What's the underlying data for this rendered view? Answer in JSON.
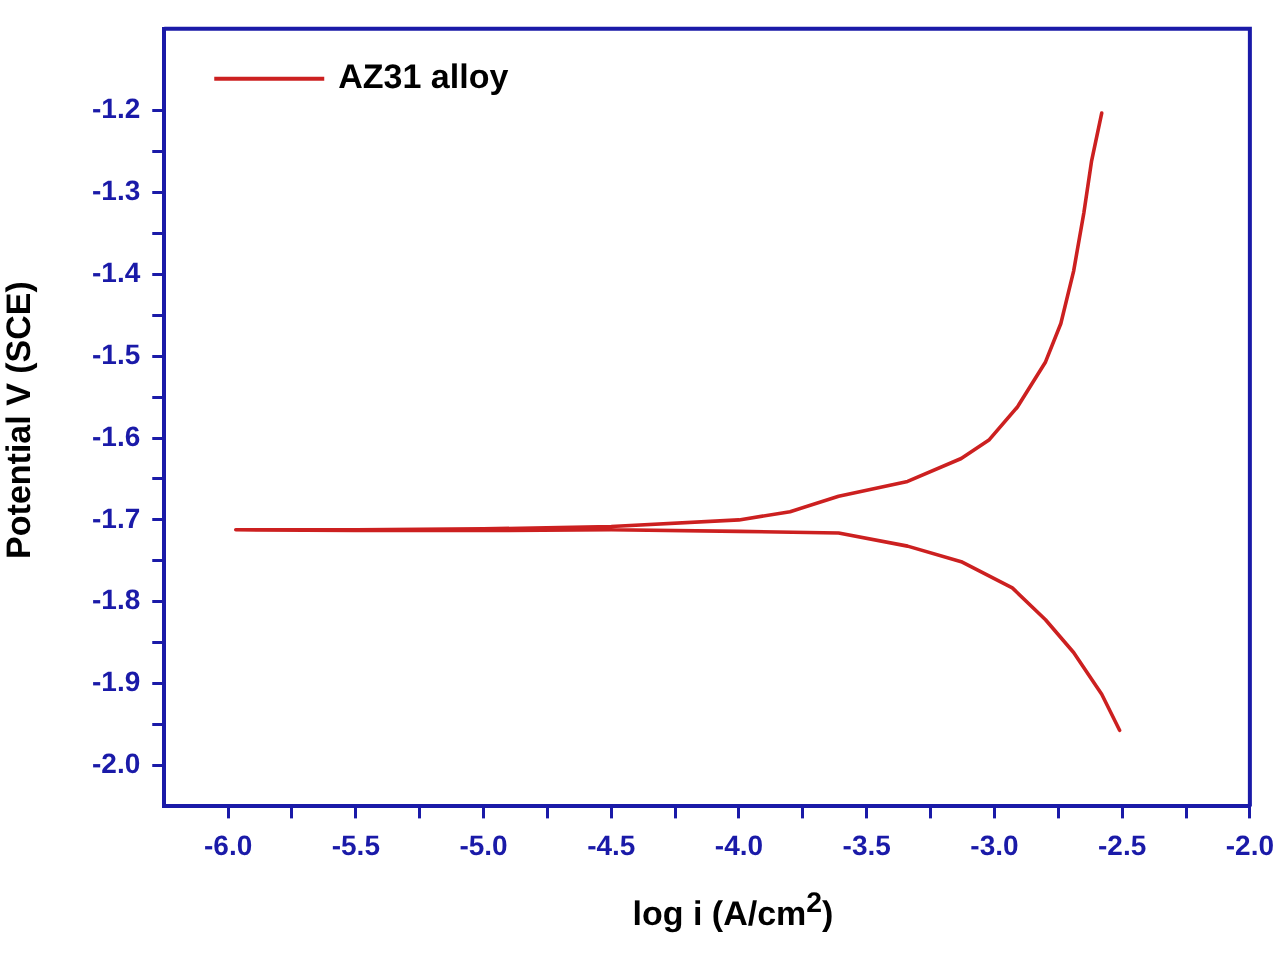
{
  "chart_data": {
    "type": "line",
    "xlabel": "log i (A/cm$^{2}$)",
    "ylabel": "Potential V (SCE)",
    "xlim": [
      -6.25,
      -2.0
    ],
    "ylim": [
      -2.05,
      -1.1
    ],
    "xticks": [
      {
        "value": -6.0,
        "label": "-6.0"
      },
      {
        "value": -5.75,
        "label": null
      },
      {
        "value": -5.5,
        "label": "-5.5"
      },
      {
        "value": -5.25,
        "label": null
      },
      {
        "value": -5.0,
        "label": "-5.0"
      },
      {
        "value": -4.75,
        "label": null
      },
      {
        "value": -4.5,
        "label": "-4.5"
      },
      {
        "value": -4.25,
        "label": null
      },
      {
        "value": -4.0,
        "label": "-4.0"
      },
      {
        "value": -3.75,
        "label": null
      },
      {
        "value": -3.5,
        "label": "-3.5"
      },
      {
        "value": -3.25,
        "label": null
      },
      {
        "value": -3.0,
        "label": "-3.0"
      },
      {
        "value": -2.75,
        "label": null
      },
      {
        "value": -2.5,
        "label": "-2.5"
      },
      {
        "value": -2.25,
        "label": null
      },
      {
        "value": -2.0,
        "label": "-2.0"
      }
    ],
    "yticks": [
      {
        "value": -2.0,
        "label": "-2.0"
      },
      {
        "value": -1.95,
        "label": null
      },
      {
        "value": -1.9,
        "label": "-1.9"
      },
      {
        "value": -1.85,
        "label": null
      },
      {
        "value": -1.8,
        "label": "-1.8"
      },
      {
        "value": -1.75,
        "label": null
      },
      {
        "value": -1.7,
        "label": "-1.7"
      },
      {
        "value": -1.65,
        "label": null
      },
      {
        "value": -1.6,
        "label": "-1.6"
      },
      {
        "value": -1.55,
        "label": null
      },
      {
        "value": -1.5,
        "label": "-1.5"
      },
      {
        "value": -1.45,
        "label": null
      },
      {
        "value": -1.4,
        "label": "-1.4"
      },
      {
        "value": -1.35,
        "label": null
      },
      {
        "value": -1.3,
        "label": "-1.3"
      },
      {
        "value": -1.25,
        "label": null
      },
      {
        "value": -1.2,
        "label": "-1.2"
      }
    ],
    "grid": false,
    "legend": "top left",
    "marker": "none",
    "line_style": "solid",
    "series": [
      {
        "name": "AZ31 alloy",
        "color": "#cc2020",
        "x": [
          -2.51,
          -2.58,
          -2.69,
          -2.8,
          -2.93,
          -3.13,
          -3.34,
          -3.61,
          -4.0,
          -4.5,
          -5.0,
          -5.5,
          -5.97,
          -5.5,
          -5.0,
          -4.5,
          -4.0,
          -3.8,
          -3.61,
          -3.34,
          -3.13,
          -3.02,
          -2.91,
          -2.8,
          -2.74,
          -2.69,
          -2.65,
          -2.62,
          -2.58
        ],
        "values": [
          -1.957,
          -1.913,
          -1.862,
          -1.822,
          -1.783,
          -1.751,
          -1.732,
          -1.716,
          -1.714,
          -1.712,
          -1.713,
          -1.713,
          -1.712,
          -1.712,
          -1.711,
          -1.708,
          -1.7,
          -1.69,
          -1.671,
          -1.653,
          -1.625,
          -1.602,
          -1.562,
          -1.507,
          -1.46,
          -1.396,
          -1.325,
          -1.262,
          -1.203
        ]
      }
    ]
  }
}
